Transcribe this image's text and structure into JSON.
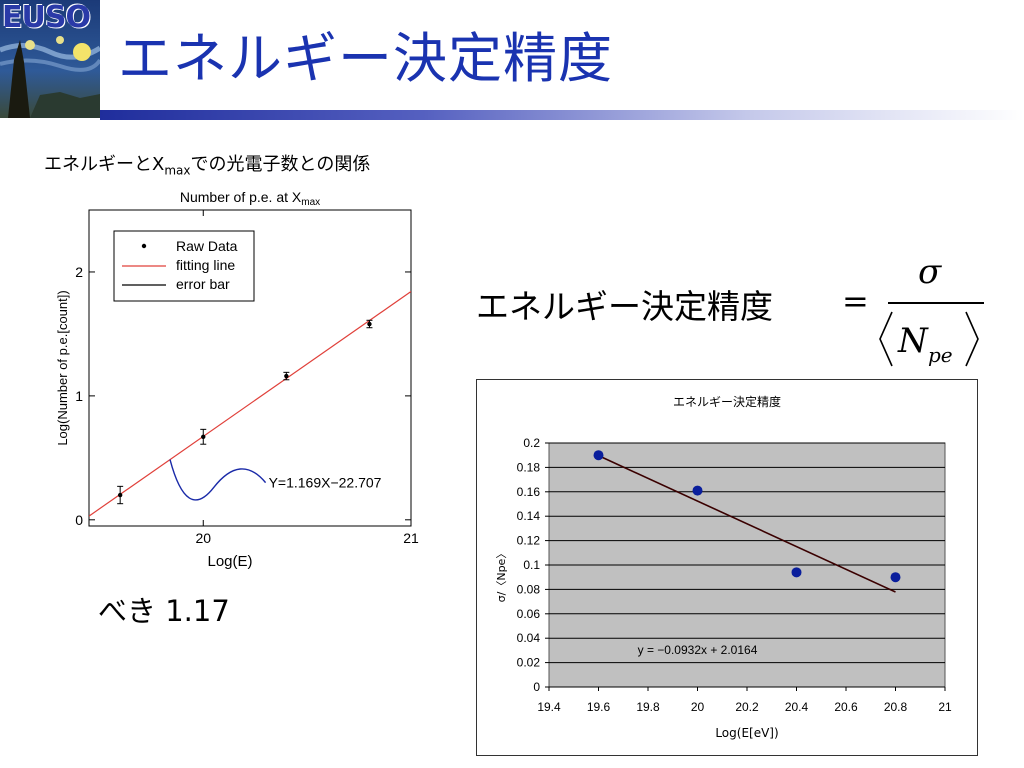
{
  "logo": {
    "text": "EUSO"
  },
  "slide": {
    "title": "エネルギー決定精度",
    "subtitle_prefix": "エネルギーとX",
    "subtitle_sub": "max",
    "subtitle_suffix": "での光電子数との関係",
    "power_text": "べき 1.17"
  },
  "formula": {
    "left_text": "エネルギー決定精度",
    "equals": "=",
    "numerator": "σ",
    "denominator_var": "N",
    "denominator_sub": "pe"
  },
  "chart_data": [
    {
      "type": "scatter",
      "title": "Number of p.e. at X",
      "title_sub": "max",
      "xlabel": "Log(E)",
      "ylabel": "Log(Number of p.e.[count])",
      "xlim": [
        19.45,
        21.0
      ],
      "ylim": [
        -0.05,
        2.5
      ],
      "x_ticks": [
        20,
        21
      ],
      "y_ticks": [
        0,
        1,
        2
      ],
      "series": [
        {
          "name": "Raw Data",
          "x": [
            19.6,
            20.0,
            20.4,
            20.8
          ],
          "y": [
            0.2,
            0.67,
            1.16,
            1.58
          ],
          "err": [
            0.07,
            0.06,
            0.03,
            0.03
          ]
        }
      ],
      "legend": [
        "Raw Data",
        "fitting line",
        "error bar"
      ],
      "legend_position": "top-left",
      "fit_label": "Y=1.169X−22.707",
      "colors": {
        "fit": "#e0403a",
        "error_curve": "#1a2aa8",
        "points": "#000000"
      }
    },
    {
      "type": "scatter",
      "title": "エネルギー決定精度",
      "xlabel": "Log(E[eV])",
      "ylabel": "σ/〈Npe〉",
      "xlim": [
        19.4,
        21.0
      ],
      "ylim": [
        0,
        0.2
      ],
      "x_ticks": [
        "19.4",
        "19.6",
        "19.8",
        "20",
        "20.2",
        "20.4",
        "20.6",
        "20.8",
        "21"
      ],
      "y_ticks": [
        "0",
        "0.02",
        "0.04",
        "0.06",
        "0.08",
        "0.1",
        "0.12",
        "0.14",
        "0.16",
        "0.18",
        "0.2"
      ],
      "series": [
        {
          "x": [
            19.6,
            20.0,
            20.4,
            20.8
          ],
          "y": [
            0.19,
            0.161,
            0.094,
            0.09
          ]
        }
      ],
      "trendline": {
        "slope": -0.0932,
        "intercept": 2.0164,
        "label": "y = −0.0932x + 2.0164"
      },
      "grid": true,
      "colors": {
        "plot_bg": "#c0c0c0",
        "points": "#0a1e9c",
        "trend": "#3a0000"
      }
    }
  ]
}
